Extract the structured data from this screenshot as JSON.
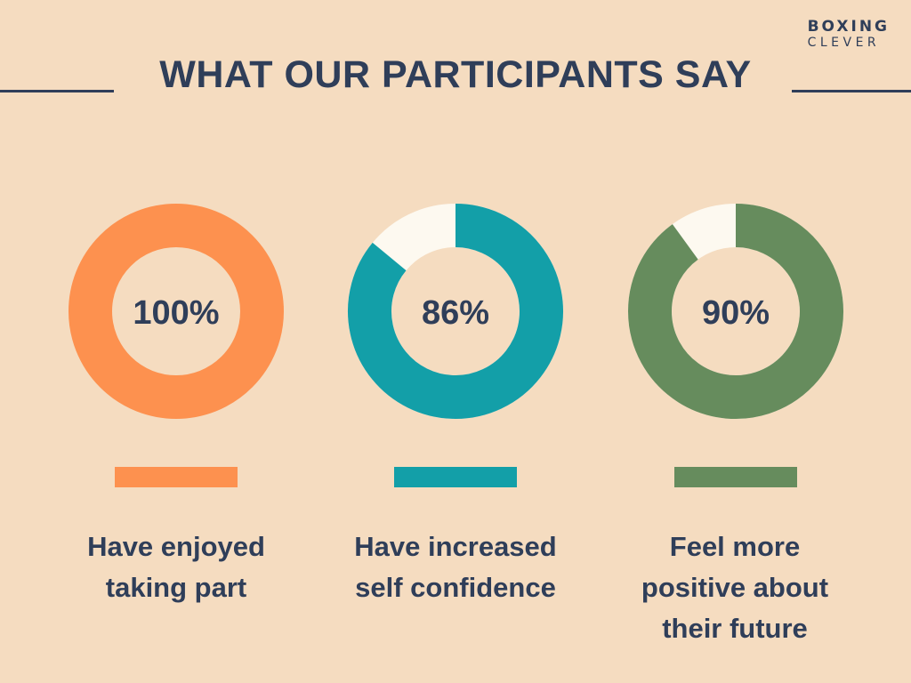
{
  "brand": {
    "line1": "BOXING",
    "line2": "CLEVER"
  },
  "header": {
    "title": "WHAT OUR PARTICIPANTS SAY"
  },
  "colors": {
    "background": "#f5dcc0",
    "text": "#2f3e59",
    "remainder": "#fdf9f0"
  },
  "chart_data": {
    "type": "pie",
    "variant": "donut",
    "items": [
      {
        "value": 100,
        "label": "100%",
        "color": "#fd914f",
        "caption": [
          "Have enjoyed",
          "taking part"
        ]
      },
      {
        "value": 86,
        "label": "86%",
        "color": "#139fa8",
        "caption": [
          "Have increased",
          "self confidence"
        ]
      },
      {
        "value": 90,
        "label": "90%",
        "color": "#668c5d",
        "caption": [
          "Feel more",
          "positive about",
          "their future"
        ]
      }
    ]
  }
}
